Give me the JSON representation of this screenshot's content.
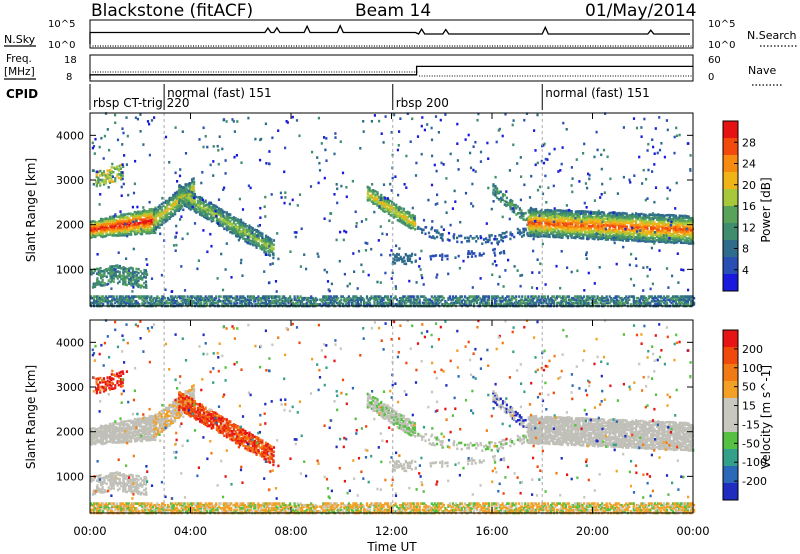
{
  "header": {
    "title": "Blackstone (fitACF)",
    "beam": "Beam 14",
    "date": "01/May/2014"
  },
  "chart_data": [
    {
      "type": "line",
      "name": "sky-search-panel",
      "left_label": "N.Sky",
      "right_label": "N.Search",
      "left_ticks": [
        "10^5",
        "10^0"
      ],
      "right_ticks": [
        "10^5",
        "10^0"
      ]
    },
    {
      "type": "line",
      "name": "freq-nave-panel",
      "left_label_lines": [
        "Freq.",
        "[MHz]"
      ],
      "right_label": "Nave",
      "left_ticks": [
        "18",
        "8"
      ],
      "right_ticks": [
        "60",
        "0"
      ],
      "freq_series": [
        {
          "t": 0.0,
          "v": 10
        },
        {
          "t": 13.0,
          "v": 10
        },
        {
          "t": 13.0,
          "v": 14
        },
        {
          "t": 24.0,
          "v": 14
        }
      ]
    },
    {
      "type": "table",
      "name": "cpid",
      "label": "CPID",
      "segments": [
        {
          "start": 0.0,
          "text": "rbsp CT-trig 220",
          "row": 1
        },
        {
          "start": 2.95,
          "text": "normal (fast) 151",
          "row": 0
        },
        {
          "start": 12.05,
          "text": "rbsp 200",
          "row": 1
        },
        {
          "start": 18.0,
          "text": "normal (fast) 151",
          "row": 0
        }
      ]
    },
    {
      "type": "heatmap",
      "name": "power",
      "ylabel": "Slant Range [km]",
      "yticks": [
        1000,
        2000,
        3000,
        4000
      ],
      "ylim": [
        180,
        4500
      ],
      "colorbar_title": "Power [dB]",
      "colorbar_ticks": [
        "4",
        "8",
        "12",
        "16",
        "20",
        "24",
        "28"
      ],
      "colorbar_range": [
        0,
        32
      ]
    },
    {
      "type": "heatmap",
      "name": "velocity",
      "ylabel": "Slant Range [km]",
      "yticks": [
        1000,
        2000,
        3000,
        4000
      ],
      "ylim": [
        180,
        4500
      ],
      "colorbar_title": "Velocity [m s^-1]",
      "colorbar_ticks": [
        "200",
        "100",
        "50",
        "15",
        "-15",
        "-50",
        "-100",
        "-200"
      ]
    }
  ],
  "x_axis": {
    "title": "Time UT",
    "range_hours": [
      0,
      24
    ],
    "ticks": [
      {
        "h": 0,
        "label": "00:00"
      },
      {
        "h": 4,
        "label": "04:00"
      },
      {
        "h": 8,
        "label": "08:00"
      },
      {
        "h": 12,
        "label": "12:00"
      },
      {
        "h": 16,
        "label": "16:00"
      },
      {
        "h": 20,
        "label": "20:00"
      },
      {
        "h": 24,
        "label": "00:00"
      }
    ]
  },
  "colors": {
    "power_scale": [
      "#1a1adc",
      "#2a4fb4",
      "#2f6c8c",
      "#3f8c6e",
      "#58a25a",
      "#a6c83a",
      "#f0b418",
      "#f78b10",
      "#f24a0c",
      "#e61212"
    ],
    "velocity_scale": [
      "#1e2cc0",
      "#2c68b8",
      "#33a08c",
      "#55c041",
      "#c8c8be",
      "#c8c8be",
      "#f2a126",
      "#f27a14",
      "#ef4a0c",
      "#e61414"
    ],
    "ground_scatter": "#c0c0b8"
  }
}
